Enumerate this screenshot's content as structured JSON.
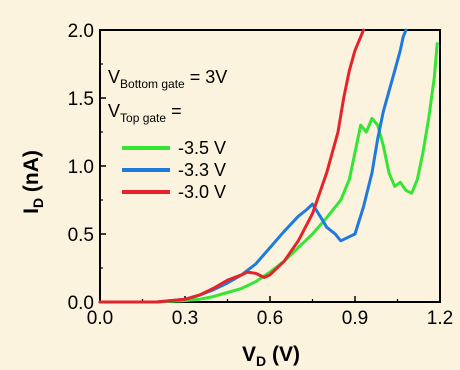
{
  "chart_data": {
    "type": "line",
    "xlabel": {
      "main": "V",
      "sub": "D",
      "unit": " (V)"
    },
    "ylabel": {
      "main": "I",
      "sub": "D",
      "unit": " (nA)"
    },
    "xlim": [
      0.0,
      1.2
    ],
    "ylim": [
      0.0,
      2.0
    ],
    "xticks": [
      "0.0",
      "0.3",
      "0.6",
      "0.9",
      "1.2"
    ],
    "yticks": [
      "0.0",
      "0.5",
      "1.0",
      "1.5",
      "2.0"
    ],
    "grid": false,
    "annotations": {
      "line1": {
        "main": "V",
        "sub": "Bottom gate",
        "rest": " = 3V"
      },
      "line2": {
        "main": "V",
        "sub": "Top gate",
        "rest": " ="
      }
    },
    "legend_position": "top-left",
    "series": [
      {
        "name": "-3.5 V",
        "color": "#33e633",
        "x": [
          0.0,
          0.1,
          0.2,
          0.3,
          0.35,
          0.4,
          0.45,
          0.5,
          0.55,
          0.6,
          0.65,
          0.7,
          0.75,
          0.8,
          0.85,
          0.88,
          0.9,
          0.92,
          0.94,
          0.96,
          0.98,
          1.0,
          1.02,
          1.04,
          1.06,
          1.08,
          1.1,
          1.12,
          1.14,
          1.16,
          1.18,
          1.19
        ],
        "y": [
          0.0,
          0.0,
          0.0,
          0.01,
          0.02,
          0.04,
          0.07,
          0.1,
          0.15,
          0.22,
          0.3,
          0.4,
          0.5,
          0.62,
          0.75,
          0.9,
          1.1,
          1.3,
          1.25,
          1.35,
          1.3,
          1.15,
          0.95,
          0.85,
          0.88,
          0.82,
          0.8,
          0.9,
          1.1,
          1.35,
          1.65,
          1.9
        ]
      },
      {
        "name": "-3.3 V",
        "color": "#1f7ae0",
        "x": [
          0.0,
          0.1,
          0.2,
          0.3,
          0.35,
          0.4,
          0.45,
          0.5,
          0.55,
          0.6,
          0.65,
          0.7,
          0.73,
          0.75,
          0.78,
          0.8,
          0.83,
          0.85,
          0.88,
          0.9,
          0.93,
          0.96,
          0.98,
          1.0,
          1.02,
          1.04,
          1.06,
          1.07,
          1.08
        ],
        "y": [
          0.0,
          0.0,
          0.0,
          0.02,
          0.05,
          0.09,
          0.14,
          0.2,
          0.28,
          0.4,
          0.52,
          0.63,
          0.68,
          0.72,
          0.62,
          0.55,
          0.5,
          0.45,
          0.48,
          0.5,
          0.7,
          0.95,
          1.2,
          1.4,
          1.55,
          1.7,
          1.85,
          1.95,
          2.0
        ]
      },
      {
        "name": "-3.0 V",
        "color": "#e6232b",
        "x": [
          0.0,
          0.1,
          0.2,
          0.3,
          0.35,
          0.4,
          0.45,
          0.5,
          0.52,
          0.55,
          0.58,
          0.6,
          0.65,
          0.7,
          0.75,
          0.8,
          0.84,
          0.86,
          0.88,
          0.9,
          0.92,
          0.93
        ],
        "y": [
          0.0,
          0.0,
          0.0,
          0.02,
          0.05,
          0.1,
          0.16,
          0.2,
          0.22,
          0.21,
          0.18,
          0.2,
          0.3,
          0.45,
          0.65,
          0.95,
          1.25,
          1.5,
          1.7,
          1.85,
          1.95,
          2.0
        ]
      }
    ]
  }
}
